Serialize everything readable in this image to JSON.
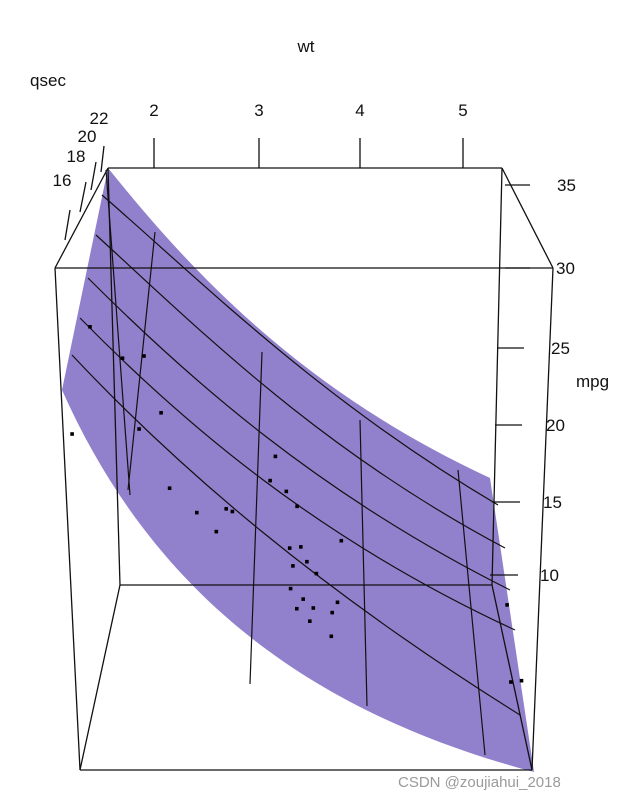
{
  "chart_data": {
    "type": "scatter",
    "subtype": "3d-scatter-with-fitted-surface",
    "x_axis": {
      "label": "wt",
      "ticks": [
        "2",
        "3",
        "4",
        "5"
      ]
    },
    "y_axis": {
      "label": "qsec",
      "ticks": [
        "16",
        "18",
        "20",
        "22"
      ]
    },
    "z_axis": {
      "label": "mpg",
      "ticks": [
        "10",
        "15",
        "20",
        "25",
        "30",
        "35"
      ],
      "range": [
        10,
        35
      ]
    },
    "surface_color": "#8b79c9",
    "point_color": "#000000",
    "points": [
      {
        "wt": 1.6,
        "qsec": 19.5,
        "mpg": 32.4
      },
      {
        "wt": 2.1,
        "qsec": 18.6,
        "mpg": 30.4
      },
      {
        "wt": 1.9,
        "qsec": 18.9,
        "mpg": 30.4
      },
      {
        "wt": 2.2,
        "qsec": 19.9,
        "mpg": 27.3
      },
      {
        "wt": 1.5,
        "qsec": 16.9,
        "mpg": 26.0
      },
      {
        "wt": 2.1,
        "qsec": 16.7,
        "mpg": 26.0
      },
      {
        "wt": 3.2,
        "qsec": 20.0,
        "mpg": 24.4
      },
      {
        "wt": 3.2,
        "qsec": 18.3,
        "mpg": 22.8
      },
      {
        "wt": 2.3,
        "qsec": 18.6,
        "mpg": 22.8
      },
      {
        "wt": 2.6,
        "qsec": 16.5,
        "mpg": 21.0
      },
      {
        "wt": 2.9,
        "qsec": 17.0,
        "mpg": 21.0
      },
      {
        "wt": 2.8,
        "qsec": 18.5,
        "mpg": 21.4
      },
      {
        "wt": 3.2,
        "qsec": 22.9,
        "mpg": 22.8
      },
      {
        "wt": 3.4,
        "qsec": 19.4,
        "mpg": 21.4
      },
      {
        "wt": 2.8,
        "qsec": 15.5,
        "mpg": 19.7
      },
      {
        "wt": 3.4,
        "qsec": 20.2,
        "mpg": 19.2
      },
      {
        "wt": 3.8,
        "qsec": 18.9,
        "mpg": 19.2
      },
      {
        "wt": 3.4,
        "qsec": 17.0,
        "mpg": 18.7
      },
      {
        "wt": 3.5,
        "qsec": 18.6,
        "mpg": 18.1
      },
      {
        "wt": 3.4,
        "qsec": 17.8,
        "mpg": 17.8
      },
      {
        "wt": 3.6,
        "qsec": 18.0,
        "mpg": 17.3
      },
      {
        "wt": 3.4,
        "qsec": 17.0,
        "mpg": 16.4
      },
      {
        "wt": 3.5,
        "qsec": 17.3,
        "mpg": 15.8
      },
      {
        "wt": 3.8,
        "qsec": 17.4,
        "mpg": 15.5
      },
      {
        "wt": 3.6,
        "qsec": 16.9,
        "mpg": 15.2
      },
      {
        "wt": 3.5,
        "qsec": 15.4,
        "mpg": 15.0
      },
      {
        "wt": 3.8,
        "qsec": 15.8,
        "mpg": 14.7
      },
      {
        "wt": 3.6,
        "qsec": 15.8,
        "mpg": 14.3
      },
      {
        "wt": 3.8,
        "qsec": 15.4,
        "mpg": 13.3
      },
      {
        "wt": 5.3,
        "qsec": 17.4,
        "mpg": 14.7
      },
      {
        "wt": 5.4,
        "qsec": 17.8,
        "mpg": 10.4
      },
      {
        "wt": 5.3,
        "qsec": 18.0,
        "mpg": 10.4
      }
    ]
  },
  "watermark": "CSDN @zoujiahui_2018"
}
